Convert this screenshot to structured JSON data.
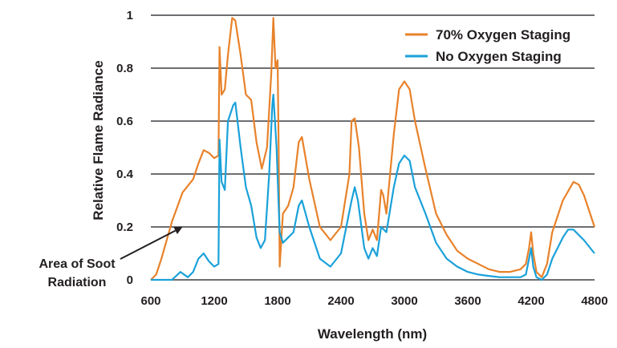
{
  "chart_data": {
    "type": "line",
    "xlabel": "Wavelength (nm)",
    "ylabel": "Relative Flame Radiance",
    "xlim": [
      600,
      4800
    ],
    "ylim": [
      0,
      1
    ],
    "x_ticks": [
      "600",
      "1200",
      "1800",
      "2400",
      "3000",
      "3600",
      "4200",
      "4800"
    ],
    "y_ticks": [
      "0",
      "0.2",
      "0.4",
      "0.6",
      "0.8",
      "1"
    ],
    "grid": "horizontal",
    "legend_position": "top-right",
    "annotation": {
      "line1": "Area of Soot",
      "line2": "Radiation",
      "arrow_target": [
        900,
        0.2
      ]
    },
    "series": [
      {
        "name": "70% Oxygen Staging",
        "color": "#e8822a",
        "points": [
          [
            600,
            0
          ],
          [
            650,
            0.02
          ],
          [
            700,
            0.08
          ],
          [
            800,
            0.22
          ],
          [
            900,
            0.33
          ],
          [
            1000,
            0.38
          ],
          [
            1050,
            0.44
          ],
          [
            1100,
            0.49
          ],
          [
            1150,
            0.48
          ],
          [
            1200,
            0.46
          ],
          [
            1240,
            0.47
          ],
          [
            1250,
            0.88
          ],
          [
            1270,
            0.7
          ],
          [
            1300,
            0.72
          ],
          [
            1330,
            0.85
          ],
          [
            1370,
            0.99
          ],
          [
            1400,
            0.98
          ],
          [
            1450,
            0.85
          ],
          [
            1500,
            0.7
          ],
          [
            1550,
            0.68
          ],
          [
            1600,
            0.52
          ],
          [
            1650,
            0.42
          ],
          [
            1700,
            0.5
          ],
          [
            1740,
            0.78
          ],
          [
            1760,
            0.99
          ],
          [
            1780,
            0.8
          ],
          [
            1800,
            0.83
          ],
          [
            1810,
            0.5
          ],
          [
            1820,
            0.05
          ],
          [
            1850,
            0.25
          ],
          [
            1900,
            0.28
          ],
          [
            1950,
            0.35
          ],
          [
            2000,
            0.52
          ],
          [
            2030,
            0.54
          ],
          [
            2100,
            0.38
          ],
          [
            2200,
            0.2
          ],
          [
            2300,
            0.15
          ],
          [
            2400,
            0.2
          ],
          [
            2480,
            0.4
          ],
          [
            2500,
            0.6
          ],
          [
            2530,
            0.61
          ],
          [
            2570,
            0.5
          ],
          [
            2620,
            0.25
          ],
          [
            2660,
            0.15
          ],
          [
            2700,
            0.19
          ],
          [
            2740,
            0.15
          ],
          [
            2780,
            0.34
          ],
          [
            2800,
            0.32
          ],
          [
            2830,
            0.25
          ],
          [
            2900,
            0.55
          ],
          [
            2950,
            0.72
          ],
          [
            3000,
            0.75
          ],
          [
            3050,
            0.72
          ],
          [
            3100,
            0.6
          ],
          [
            3200,
            0.42
          ],
          [
            3300,
            0.25
          ],
          [
            3400,
            0.17
          ],
          [
            3500,
            0.11
          ],
          [
            3600,
            0.08
          ],
          [
            3700,
            0.06
          ],
          [
            3800,
            0.04
          ],
          [
            3900,
            0.03
          ],
          [
            4000,
            0.03
          ],
          [
            4100,
            0.04
          ],
          [
            4150,
            0.06
          ],
          [
            4180,
            0.12
          ],
          [
            4200,
            0.18
          ],
          [
            4220,
            0.1
          ],
          [
            4250,
            0.03
          ],
          [
            4300,
            0.01
          ],
          [
            4350,
            0.06
          ],
          [
            4400,
            0.18
          ],
          [
            4500,
            0.3
          ],
          [
            4600,
            0.37
          ],
          [
            4650,
            0.36
          ],
          [
            4700,
            0.32
          ],
          [
            4800,
            0.2
          ]
        ]
      },
      {
        "name": "No Oxygen Staging",
        "color": "#1aa1d9",
        "points": [
          [
            600,
            0
          ],
          [
            800,
            0
          ],
          [
            880,
            0.03
          ],
          [
            950,
            0.01
          ],
          [
            1000,
            0.03
          ],
          [
            1050,
            0.08
          ],
          [
            1100,
            0.1
          ],
          [
            1150,
            0.07
          ],
          [
            1200,
            0.05
          ],
          [
            1240,
            0.06
          ],
          [
            1250,
            0.53
          ],
          [
            1270,
            0.37
          ],
          [
            1300,
            0.34
          ],
          [
            1330,
            0.6
          ],
          [
            1380,
            0.66
          ],
          [
            1400,
            0.67
          ],
          [
            1450,
            0.5
          ],
          [
            1500,
            0.35
          ],
          [
            1550,
            0.28
          ],
          [
            1600,
            0.16
          ],
          [
            1640,
            0.12
          ],
          [
            1680,
            0.15
          ],
          [
            1720,
            0.4
          ],
          [
            1750,
            0.66
          ],
          [
            1760,
            0.7
          ],
          [
            1790,
            0.5
          ],
          [
            1810,
            0.28
          ],
          [
            1820,
            0.18
          ],
          [
            1850,
            0.14
          ],
          [
            1900,
            0.16
          ],
          [
            1950,
            0.18
          ],
          [
            2000,
            0.28
          ],
          [
            2030,
            0.3
          ],
          [
            2100,
            0.2
          ],
          [
            2200,
            0.08
          ],
          [
            2300,
            0.05
          ],
          [
            2400,
            0.1
          ],
          [
            2500,
            0.3
          ],
          [
            2530,
            0.35
          ],
          [
            2560,
            0.3
          ],
          [
            2620,
            0.12
          ],
          [
            2660,
            0.08
          ],
          [
            2700,
            0.12
          ],
          [
            2740,
            0.09
          ],
          [
            2780,
            0.2
          ],
          [
            2830,
            0.18
          ],
          [
            2900,
            0.35
          ],
          [
            2950,
            0.44
          ],
          [
            3000,
            0.47
          ],
          [
            3050,
            0.45
          ],
          [
            3100,
            0.35
          ],
          [
            3200,
            0.25
          ],
          [
            3300,
            0.14
          ],
          [
            3400,
            0.08
          ],
          [
            3500,
            0.05
          ],
          [
            3600,
            0.03
          ],
          [
            3700,
            0.02
          ],
          [
            3800,
            0.015
          ],
          [
            3900,
            0.01
          ],
          [
            4000,
            0.01
          ],
          [
            4100,
            0.01
          ],
          [
            4150,
            0.02
          ],
          [
            4180,
            0.08
          ],
          [
            4200,
            0.12
          ],
          [
            4220,
            0.05
          ],
          [
            4250,
            0.01
          ],
          [
            4300,
            0.0
          ],
          [
            4350,
            0.02
          ],
          [
            4400,
            0.08
          ],
          [
            4500,
            0.16
          ],
          [
            4550,
            0.19
          ],
          [
            4600,
            0.19
          ],
          [
            4700,
            0.15
          ],
          [
            4800,
            0.1
          ]
        ]
      }
    ]
  }
}
